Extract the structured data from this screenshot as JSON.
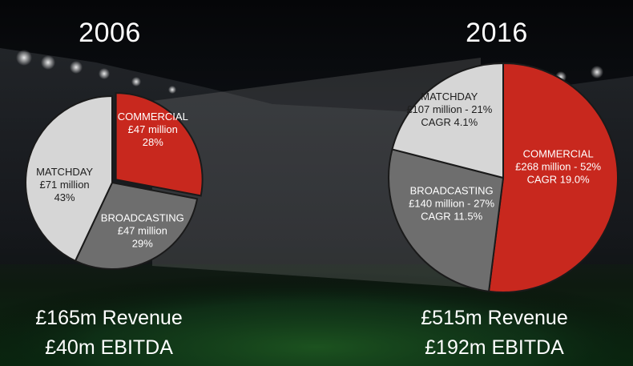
{
  "colors": {
    "commercial": "#c8281e",
    "matchday": "#d6d6d6",
    "broadcasting": "#6e6e6e",
    "text_light": "#ffffff",
    "text_dark": "#1e1e1e"
  },
  "chart_data": [
    {
      "type": "pie",
      "title": "2006",
      "slices": [
        {
          "name": "COMMERCIAL",
          "detail": "£47 million",
          "share": "28%",
          "value": 28
        },
        {
          "name": "BROADCASTING",
          "detail": "£47 million",
          "share": "29%",
          "value": 29
        },
        {
          "name": "MATCHDAY",
          "detail": "£71 million",
          "share": "43%",
          "value": 43
        }
      ],
      "footer": {
        "revenue": "£165m Revenue",
        "ebitda": "£40m EBITDA"
      }
    },
    {
      "type": "pie",
      "title": "2016",
      "slices": [
        {
          "name": "COMMERCIAL",
          "detail": "£268 million - 52%",
          "share": "CAGR 19.0%",
          "value": 52
        },
        {
          "name": "BROADCASTING",
          "detail": "£140 million - 27%",
          "share": "CAGR 11.5%",
          "value": 27
        },
        {
          "name": "MATCHDAY",
          "detail": "£107 million - 21%",
          "share": "CAGR 4.1%",
          "value": 21
        }
      ],
      "footer": {
        "revenue": "£515m Revenue",
        "ebitda": "£192m EBITDA"
      }
    }
  ]
}
